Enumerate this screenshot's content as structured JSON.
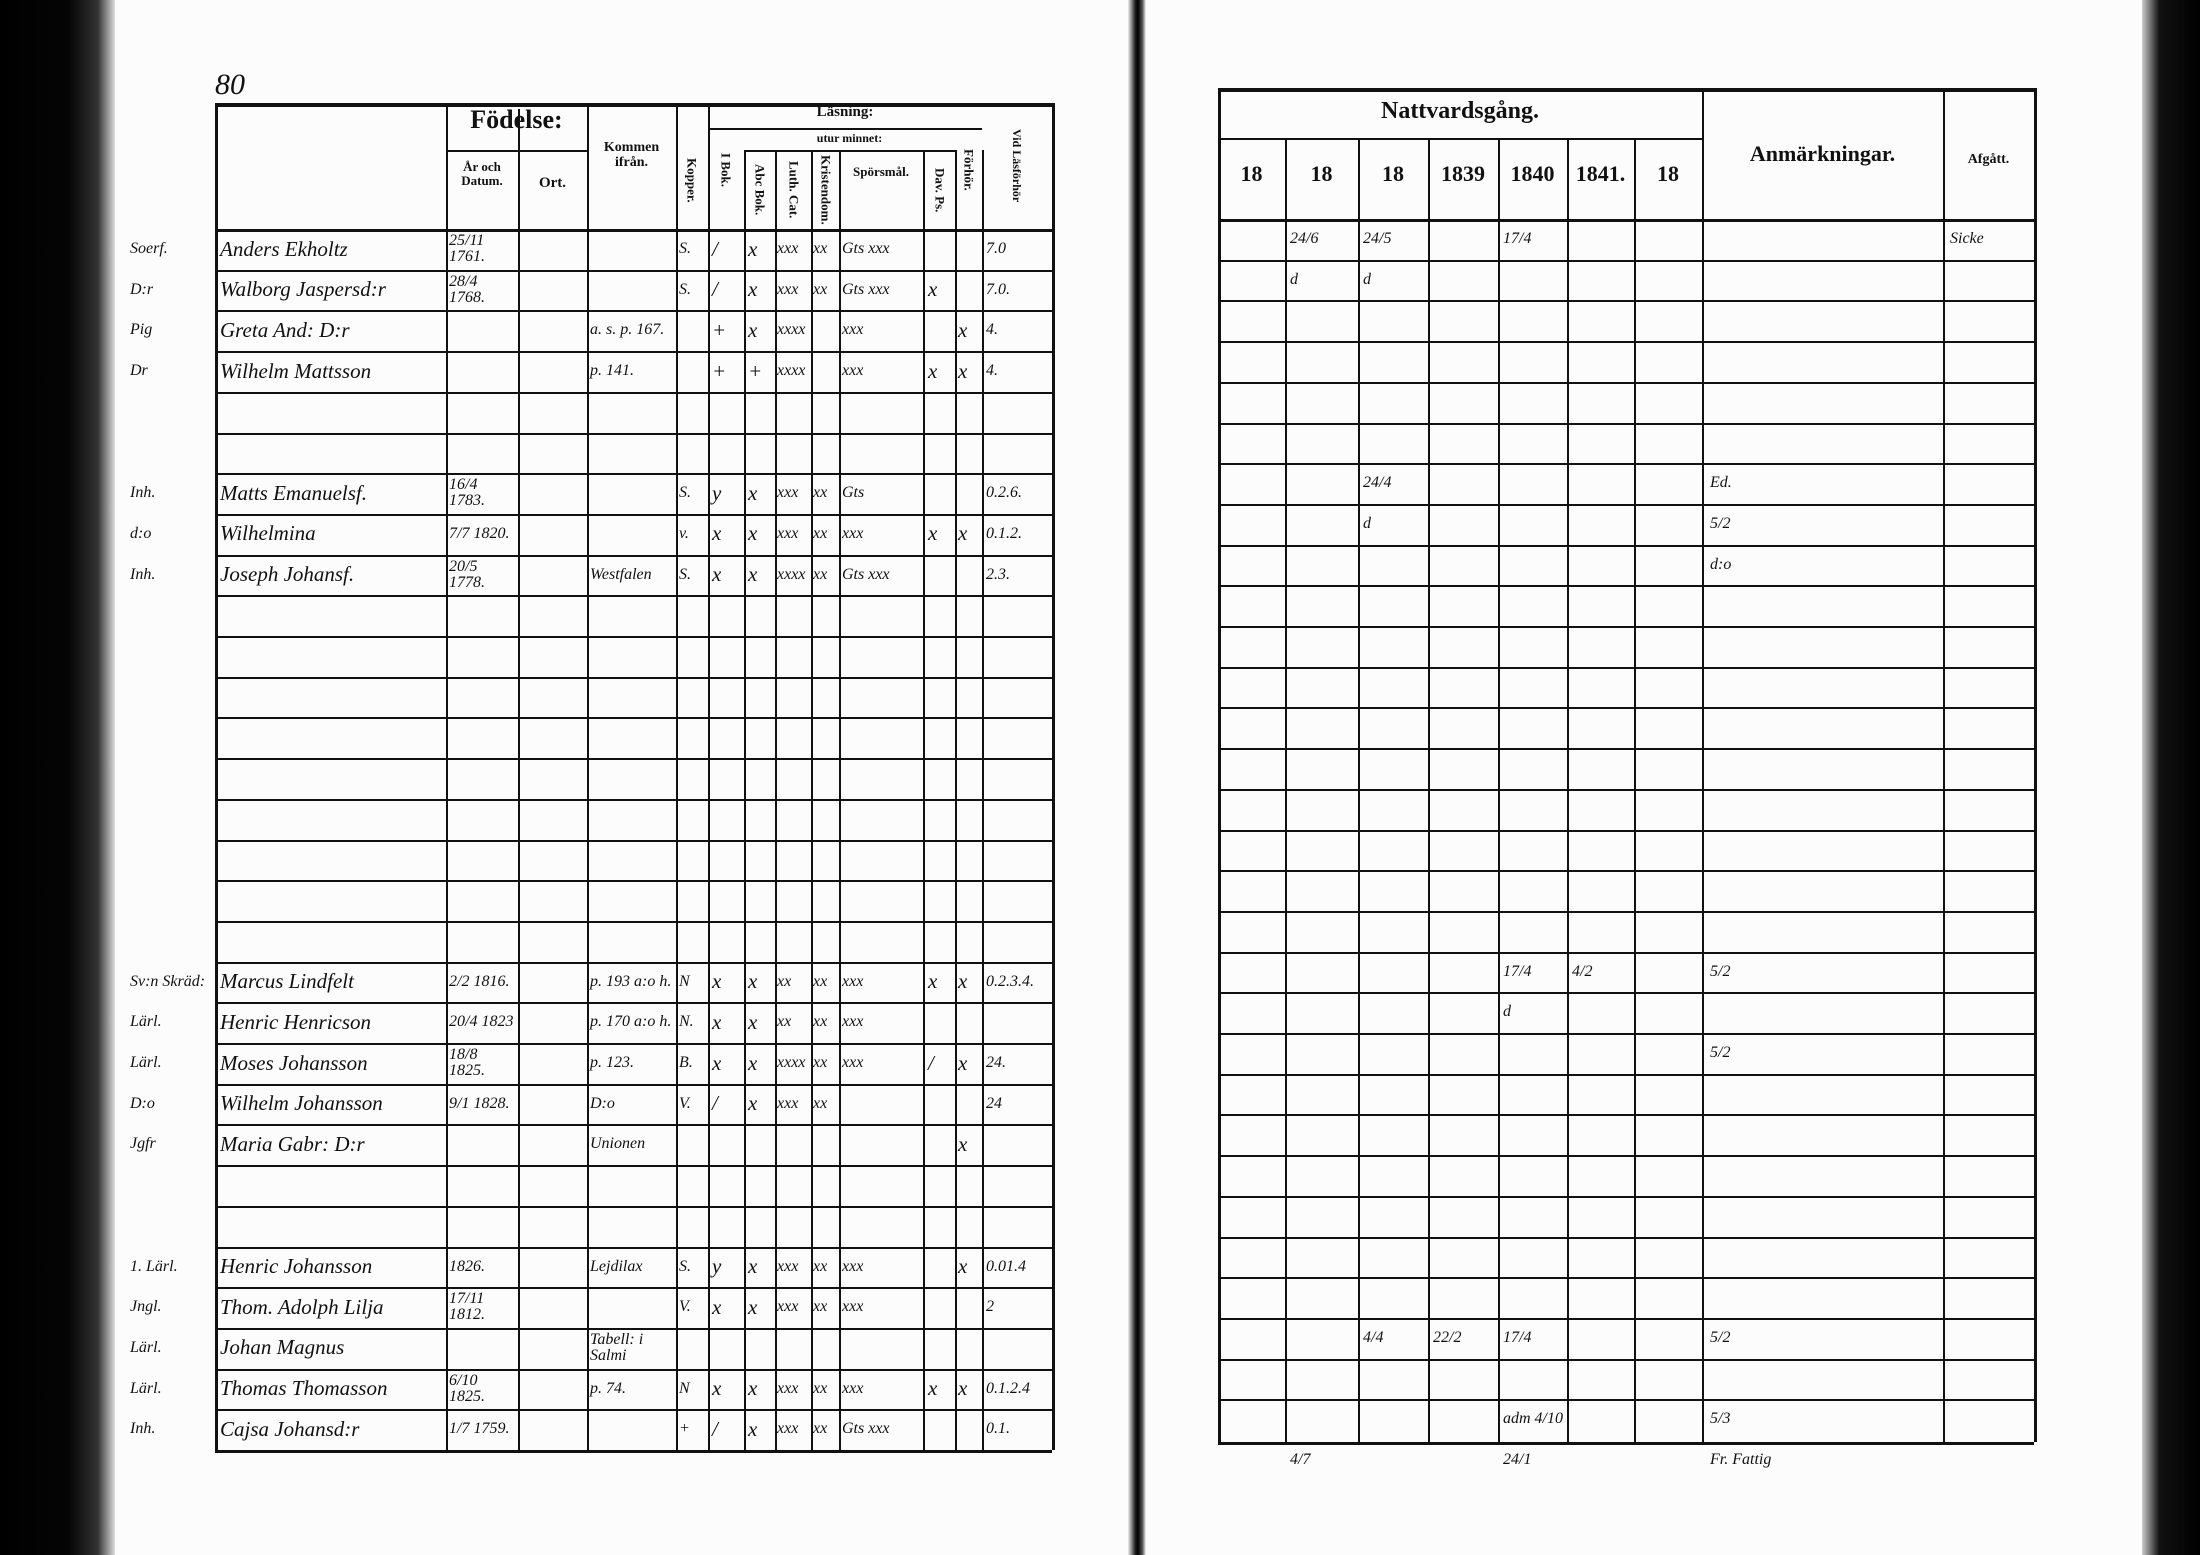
{
  "left_page": {
    "page_number": "80",
    "headers": {
      "fodelse": "Födelse:",
      "ar_datum": "År och Datum.",
      "ort": "Ort.",
      "kommen": "Kommen ifrån.",
      "kopper": "Kopper.",
      "lasning": "Läsning:",
      "utur_minnet": "utur minnet:",
      "i_bok": "I Bok.",
      "abc_bok": "Abc Bok.",
      "luth_cat": "Luth. Cat.",
      "kristendom": "Kristendom.",
      "sporsmal": "Spörsmål.",
      "dav_ps": "Dav. Ps.",
      "forhor": "Förhör.",
      "nattvard": "Vid Läsförhör"
    },
    "rows": [
      {
        "title": "Soerf.",
        "name": "Anders Ekholtz",
        "born": "25/11 1761.",
        "from": "",
        "kopper": "S.",
        "ibok": "/",
        "abc": "x",
        "luth": "xxx",
        "krist": "xx",
        "spors": "Gts xxx",
        "dav": "",
        "forhor": "",
        "nattv": "7.0"
      },
      {
        "title": "D:r",
        "name": "Walborg Jaspersd:r",
        "born": "28/4 1768.",
        "from": "",
        "kopper": "S.",
        "ibok": "/",
        "abc": "x",
        "luth": "xxx",
        "krist": "xx",
        "spors": "Gts xxx",
        "dav": "x",
        "forhor": "",
        "nattv": "7.0."
      },
      {
        "title": "Pig",
        "name": "Greta And: D:r",
        "born": "",
        "from": "a. s. p. 167.",
        "kopper": "",
        "ibok": "+",
        "abc": "x",
        "luth": "xxxx",
        "krist": "",
        "spors": "xxx",
        "dav": "",
        "forhor": "x",
        "nattv": "4."
      },
      {
        "title": "Dr",
        "name": "Wilhelm Mattsson",
        "born": "",
        "from": "p. 141.",
        "kopper": "",
        "ibok": "+",
        "abc": "+",
        "luth": "xxxx",
        "krist": "",
        "spors": "xxx",
        "dav": "x",
        "forhor": "x",
        "nattv": "4."
      },
      {},
      {},
      {
        "title": "Inh.",
        "name": "Matts Emanuelsf.",
        "born": "16/4 1783.",
        "from": "",
        "kopper": "S.",
        "ibok": "y",
        "abc": "x",
        "luth": "xxx",
        "krist": "xx",
        "spors": "Gts",
        "dav": "",
        "forhor": "",
        "nattv": "0.2.6."
      },
      {
        "title": "d:o",
        "name": "Wilhelmina",
        "born": "7/7 1820.",
        "from": "",
        "kopper": "v.",
        "ibok": "x",
        "abc": "x",
        "luth": "xxx",
        "krist": "xx",
        "spors": "xxx",
        "dav": "x",
        "forhor": "x",
        "nattv": "0.1.2."
      },
      {
        "title": "Inh.",
        "name": "Joseph Johansf.",
        "born": "20/5 1778.",
        "from": "Westfalen",
        "kopper": "S.",
        "ibok": "x",
        "abc": "x",
        "luth": "xxxx",
        "krist": "xx",
        "spors": "Gts xxx",
        "dav": "",
        "forhor": "",
        "nattv": "2.3."
      },
      {},
      {},
      {},
      {},
      {},
      {},
      {},
      {},
      {},
      {
        "title": "Sv:n Skräd:",
        "name": "Marcus Lindfelt",
        "born": "2/2 1816.",
        "from": "p. 193 a:o h.",
        "kopper": "N",
        "ibok": "x",
        "abc": "x",
        "luth": "xx",
        "krist": "xx",
        "spors": "xxx",
        "dav": "x",
        "forhor": "x",
        "nattv": "0.2.3.4."
      },
      {
        "title": "Lärl.",
        "name": "Henric Henricson",
        "born": "20/4 1823",
        "from": "p. 170 a:o h.",
        "kopper": "N.",
        "ibok": "x",
        "abc": "x",
        "luth": "xx",
        "krist": "xx",
        "spors": "xxx",
        "dav": "",
        "forhor": "",
        "nattv": ""
      },
      {
        "title": "Lärl.",
        "name": "Moses Johansson",
        "born": "18/8 1825.",
        "from": "p. 123.",
        "kopper": "B.",
        "ibok": "x",
        "abc": "x",
        "luth": "xxxx",
        "krist": "xx",
        "spors": "xxx",
        "dav": "/",
        "forhor": "x",
        "nattv": "24."
      },
      {
        "title": "D:o",
        "name": "Wilhelm Johansson",
        "born": "9/1 1828.",
        "from": "D:o",
        "kopper": "V.",
        "ibok": "/",
        "abc": "x",
        "luth": "xxx",
        "krist": "xx",
        "spors": "",
        "dav": "",
        "forhor": "",
        "nattv": "24"
      },
      {
        "title": "Jgfr",
        "name": "Maria Gabr: D:r",
        "born": "",
        "from": "Unionen",
        "kopper": "",
        "ibok": "",
        "abc": "",
        "luth": "",
        "krist": "",
        "spors": "",
        "dav": "",
        "forhor": "x",
        "nattv": ""
      },
      {},
      {},
      {
        "title": "1. Lärl.",
        "name": "Henric Johansson",
        "born": "1826.",
        "from": "Lejdilax",
        "kopper": "S.",
        "ibok": "y",
        "abc": "x",
        "luth": "xxx",
        "krist": "xx",
        "spors": "xxx",
        "dav": "",
        "forhor": "x",
        "nattv": "0.01.4"
      },
      {
        "title": "Jngl.",
        "name": "Thom. Adolph Lilja",
        "born": "17/11 1812.",
        "from": "",
        "kopper": "V.",
        "ibok": "x",
        "abc": "x",
        "luth": "xxx",
        "krist": "xx",
        "spors": "xxx",
        "dav": "",
        "forhor": "",
        "nattv": "2"
      },
      {
        "title": "Lärl.",
        "name": "Johan Magnus",
        "born": "",
        "from": "Tabell: i Salmi",
        "kopper": "",
        "ibok": "",
        "abc": "",
        "luth": "",
        "krist": "",
        "spors": "",
        "dav": "",
        "forhor": "",
        "nattv": ""
      },
      {
        "title": "Lärl.",
        "name": "Thomas Thomasson",
        "born": "6/10 1825.",
        "from": "p. 74.",
        "kopper": "N",
        "ibok": "x",
        "abc": "x",
        "luth": "xxx",
        "krist": "xx",
        "spors": "xxx",
        "dav": "x",
        "forhor": "x",
        "nattv": "0.1.2.4"
      },
      {
        "title": "Inh.",
        "name": "Cajsa Johansd:r",
        "born": "1/7 1759.",
        "from": "",
        "kopper": "+",
        "ibok": "/",
        "abc": "x",
        "luth": "xxx",
        "krist": "xx",
        "spors": "Gts xxx",
        "dav": "",
        "forhor": "",
        "nattv": "0.1."
      }
    ]
  },
  "right_page": {
    "headers": {
      "nattvardsgang": "Nattvardsgång.",
      "years": [
        "18",
        "18",
        "18",
        "1839",
        "1840",
        "1841.",
        "18"
      ],
      "anmarkningar": "Anmärkningar.",
      "afgatt": "Afgått."
    },
    "rows": [
      {
        "n": [
          "",
          "24/6",
          "24/5",
          "",
          "17/4",
          "",
          ""
        ],
        "anm": "",
        "afgatt": "Sicke"
      },
      {
        "n": [
          "",
          "d",
          "d",
          "",
          "",
          "",
          ""
        ],
        "anm": "",
        "afgatt": ""
      },
      {},
      {},
      {},
      {},
      {
        "n": [
          "",
          "",
          "24/4",
          "",
          "",
          "",
          ""
        ],
        "anm": "Ed.",
        "afgatt": ""
      },
      {
        "n": [
          "",
          "",
          "d",
          "",
          "",
          "",
          ""
        ],
        "anm": "5/2",
        "afgatt": ""
      },
      {
        "n": [],
        "anm": "d:o",
        "afgatt": ""
      },
      {},
      {},
      {},
      {},
      {},
      {},
      {},
      {},
      {},
      {
        "n": [
          "",
          "",
          "",
          "",
          "17/4",
          "4/2",
          ""
        ],
        "anm": "5/2",
        "afgatt": ""
      },
      {
        "n": [
          "",
          "",
          "",
          "",
          "d",
          "",
          ""
        ],
        "anm": "",
        "afgatt": ""
      },
      {
        "n": [],
        "anm": "5/2",
        "afgatt": ""
      },
      {},
      {},
      {},
      {},
      {},
      {},
      {
        "n": [
          "",
          "",
          "4/4",
          "22/2",
          "17/4",
          "",
          ""
        ],
        "anm": "5/2",
        "afgatt": ""
      },
      {},
      {
        "n": [
          "",
          "",
          "",
          "",
          "adm 4/10",
          "",
          ""
        ],
        "anm": "5/3",
        "afgatt": ""
      },
      {
        "n": [
          "",
          "4/7",
          "",
          "",
          "24/1",
          "",
          ""
        ],
        "anm": "Fr. Fattig",
        "afgatt": ""
      }
    ]
  }
}
